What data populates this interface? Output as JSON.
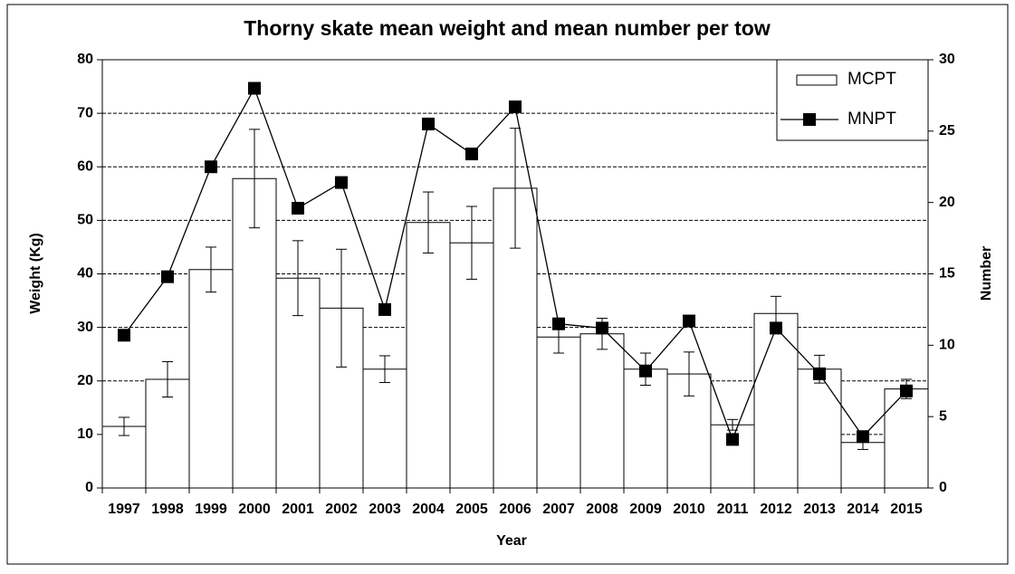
{
  "chart_data": {
    "type": "bar-line",
    "title": "Thorny skate mean weight and mean number per tow",
    "x_label": "Year",
    "y_label": "Weight (Kg)",
    "y2_label": "Number",
    "categories": [
      "1997",
      "1998",
      "1999",
      "2000",
      "2001",
      "2002",
      "2003",
      "2004",
      "2005",
      "2006",
      "2007",
      "2008",
      "2009",
      "2010",
      "2011",
      "2012",
      "2013",
      "2014",
      "2015"
    ],
    "series": [
      {
        "name": "MCPT",
        "type": "bar",
        "color": "#ffffff",
        "values": [
          11.5,
          20.3,
          40.8,
          57.8,
          39.2,
          33.6,
          22.2,
          49.6,
          45.8,
          56,
          28.2,
          28.8,
          22.2,
          21.3,
          11.8,
          32.6,
          22.2,
          8.5,
          18.5
        ],
        "error": [
          1.7,
          3.3,
          4.2,
          9.2,
          7,
          11,
          2.5,
          5.7,
          6.8,
          11.2,
          3,
          2.9,
          3,
          4.1,
          1,
          3.2,
          2.6,
          1.3,
          1.8
        ]
      },
      {
        "name": "MNPT",
        "type": "line",
        "axis": "y2",
        "color": "#000000",
        "values": [
          10.7,
          14.8,
          22.5,
          28,
          19.6,
          21.4,
          12.5,
          25.5,
          23.4,
          26.7,
          11.5,
          11.2,
          8.2,
          11.7,
          3.4,
          11.2,
          8,
          3.6,
          6.8
        ]
      }
    ],
    "ylim": [
      0,
      80
    ],
    "yticks": [
      0,
      10,
      20,
      30,
      40,
      50,
      60,
      70,
      80
    ],
    "y2lim": [
      0,
      30
    ],
    "y2ticks": [
      0,
      5,
      10,
      15,
      20,
      25,
      30
    ],
    "grid": true,
    "legend": "top-right"
  }
}
